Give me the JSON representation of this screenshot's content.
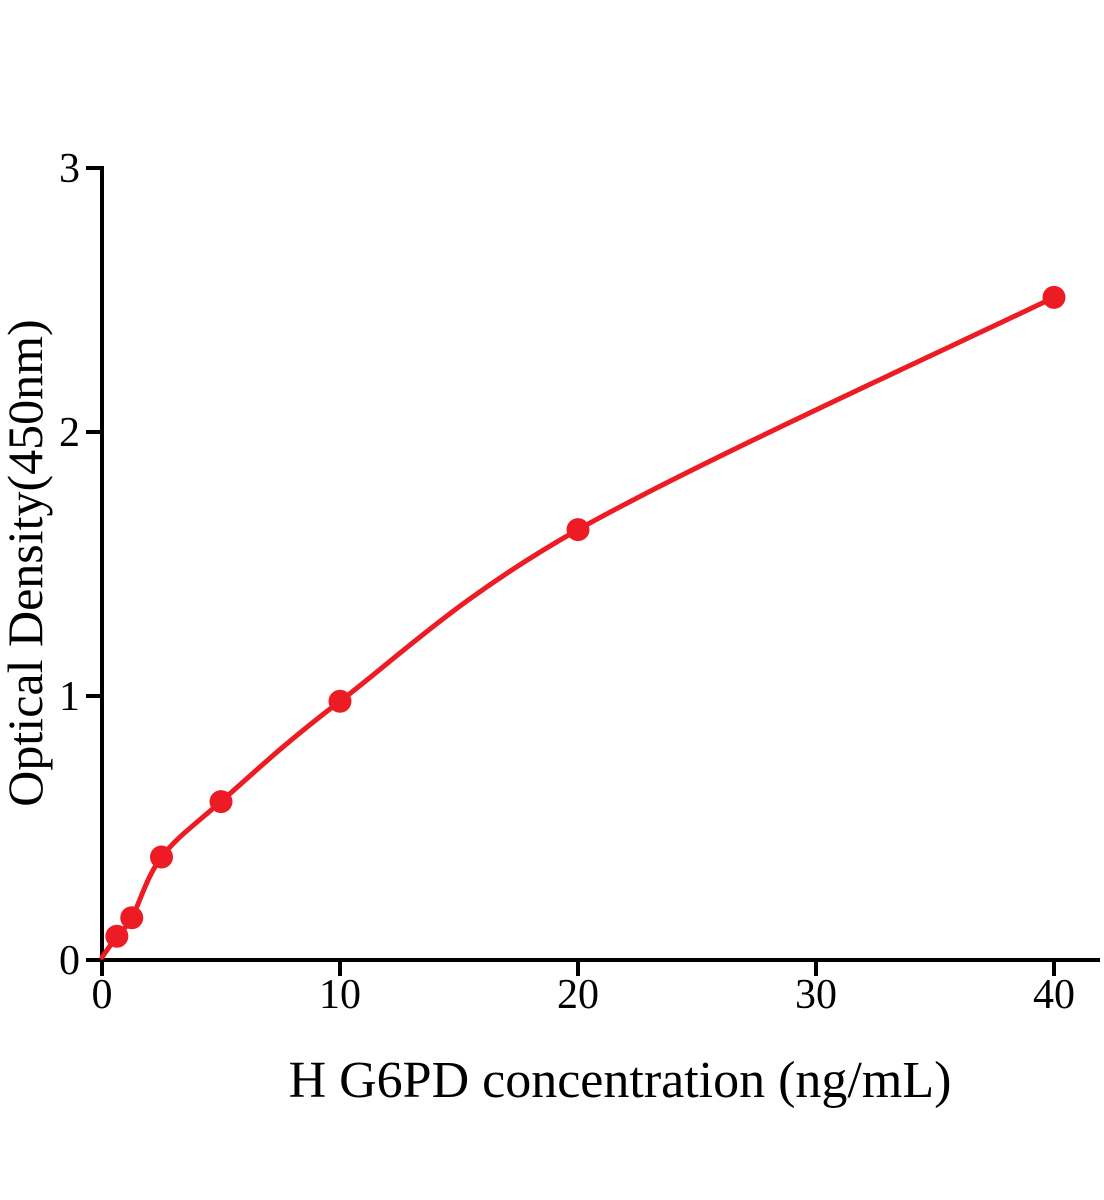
{
  "chart_data": {
    "type": "scatter",
    "title": "",
    "xlabel": "H G6PD concentration (ng/mL)",
    "ylabel": "Optical Density(450nm)",
    "xlim": [
      0,
      42
    ],
    "ylim": [
      0,
      3
    ],
    "x_ticks": [
      0,
      10,
      20,
      30,
      40
    ],
    "y_ticks": [
      0,
      1,
      2,
      3
    ],
    "grid": false,
    "legend": "none",
    "series": [
      {
        "name": "standard-curve",
        "marker": "filled-circle",
        "color": "#ed1c24",
        "curve_start": {
          "x": 0,
          "y": 0.01
        },
        "points": [
          {
            "x": 0.625,
            "y": 0.09
          },
          {
            "x": 1.25,
            "y": 0.16
          },
          {
            "x": 2.5,
            "y": 0.39
          },
          {
            "x": 5,
            "y": 0.6
          },
          {
            "x": 10,
            "y": 0.98
          },
          {
            "x": 20,
            "y": 1.63
          },
          {
            "x": 40,
            "y": 2.51
          }
        ]
      }
    ],
    "colors": {
      "curve": "#ed1c24",
      "axis": "#000000",
      "background": "#ffffff"
    }
  },
  "layout_labels": {
    "y_axis_title": "Optical Density(450nm)",
    "x_axis_title": "H G6PD concentration (ng/mL)"
  }
}
